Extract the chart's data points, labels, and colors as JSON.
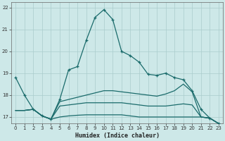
{
  "xlabel": "Humidex (Indice chaleur)",
  "bg_color": "#cde8e8",
  "grid_color": "#aacccc",
  "line_color": "#1a6b6b",
  "xlim": [
    -0.5,
    23.5
  ],
  "ylim": [
    16.7,
    22.25
  ],
  "yticks": [
    17,
    18,
    19,
    20,
    21,
    22
  ],
  "xticks": [
    0,
    1,
    2,
    3,
    4,
    5,
    6,
    7,
    8,
    9,
    10,
    11,
    12,
    13,
    14,
    15,
    16,
    17,
    18,
    19,
    20,
    21,
    22,
    23
  ],
  "s1_x": [
    0,
    1,
    2,
    3,
    4,
    5,
    6,
    7,
    8,
    9,
    10,
    11,
    12,
    13,
    14,
    15,
    16,
    17,
    18,
    19,
    20,
    21,
    22,
    23
  ],
  "s1_y": [
    18.8,
    18.0,
    17.35,
    17.05,
    16.9,
    17.8,
    19.15,
    19.3,
    20.5,
    21.55,
    21.9,
    21.45,
    20.0,
    19.8,
    19.5,
    18.95,
    18.9,
    19.0,
    18.8,
    18.7,
    18.2,
    17.35,
    16.95,
    16.7
  ],
  "s2_x": [
    0,
    1,
    2,
    3,
    4,
    5,
    6,
    7,
    8,
    9,
    10,
    11,
    12,
    13,
    14,
    15,
    16,
    17,
    18,
    19,
    20,
    21,
    22,
    23
  ],
  "s2_y": [
    17.3,
    17.3,
    17.35,
    17.05,
    16.9,
    17.0,
    17.05,
    17.08,
    17.1,
    17.1,
    17.1,
    17.1,
    17.1,
    17.05,
    17.0,
    17.0,
    17.0,
    17.0,
    17.0,
    17.0,
    17.0,
    17.0,
    16.95,
    16.7
  ],
  "s3_x": [
    0,
    1,
    2,
    3,
    4,
    5,
    6,
    7,
    8,
    9,
    10,
    11,
    12,
    13,
    14,
    15,
    16,
    17,
    18,
    19,
    20,
    21,
    22,
    23
  ],
  "s3_y": [
    17.3,
    17.3,
    17.35,
    17.05,
    16.9,
    17.5,
    17.55,
    17.6,
    17.65,
    17.65,
    17.65,
    17.65,
    17.65,
    17.6,
    17.55,
    17.5,
    17.5,
    17.5,
    17.55,
    17.6,
    17.55,
    17.0,
    16.95,
    16.7
  ],
  "s4_x": [
    0,
    1,
    2,
    3,
    4,
    5,
    6,
    7,
    8,
    9,
    10,
    11,
    12,
    13,
    14,
    15,
    16,
    17,
    18,
    19,
    20,
    21,
    22,
    23
  ],
  "s4_y": [
    17.3,
    17.3,
    17.35,
    17.05,
    16.9,
    17.7,
    17.8,
    17.9,
    18.0,
    18.1,
    18.2,
    18.2,
    18.15,
    18.1,
    18.05,
    18.0,
    17.95,
    18.05,
    18.2,
    18.5,
    18.15,
    17.0,
    16.95,
    16.7
  ]
}
